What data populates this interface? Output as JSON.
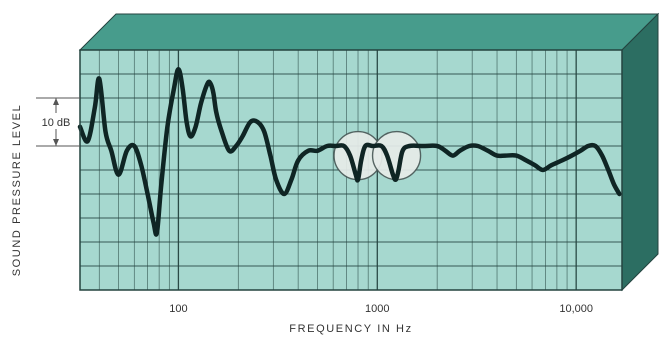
{
  "chart_data": {
    "type": "line",
    "xlabel": "FREQUENCY IN Hz",
    "ylabel": "SOUND PRESSURE LEVEL",
    "x_scale": "log",
    "xlim": [
      32,
      17000
    ],
    "x_ticks": [
      {
        "value": 100,
        "label": "100"
      },
      {
        "value": 1000,
        "label": "1000"
      },
      {
        "value": 10000,
        "label": "10,000"
      }
    ],
    "ylim": [
      -30,
      20
    ],
    "y_unit": "dB",
    "scale_bar": {
      "label": "10 dB",
      "from": 0,
      "to": 10
    },
    "grid": true,
    "highlighted_dips": [
      {
        "x": 800,
        "y": -2
      },
      {
        "x": 1250,
        "y": -2
      }
    ],
    "series": [
      {
        "color": "#0f2524",
        "points": [
          [
            32,
            4
          ],
          [
            35,
            1
          ],
          [
            38,
            8
          ],
          [
            40,
            14
          ],
          [
            43,
            3
          ],
          [
            46,
            -1
          ],
          [
            50,
            -6
          ],
          [
            55,
            -1
          ],
          [
            60,
            0
          ],
          [
            65,
            -4
          ],
          [
            70,
            -10
          ],
          [
            75,
            -16
          ],
          [
            78,
            -18
          ],
          [
            82,
            -8
          ],
          [
            88,
            4
          ],
          [
            95,
            12
          ],
          [
            100,
            16
          ],
          [
            105,
            12
          ],
          [
            110,
            5
          ],
          [
            115,
            2
          ],
          [
            122,
            4
          ],
          [
            130,
            9
          ],
          [
            140,
            13
          ],
          [
            145,
            13
          ],
          [
            150,
            11
          ],
          [
            155,
            7
          ],
          [
            165,
            3
          ],
          [
            180,
            -1
          ],
          [
            195,
            0
          ],
          [
            210,
            2
          ],
          [
            230,
            5
          ],
          [
            250,
            5
          ],
          [
            270,
            3
          ],
          [
            290,
            -2
          ],
          [
            310,
            -7
          ],
          [
            340,
            -10
          ],
          [
            370,
            -7
          ],
          [
            400,
            -3
          ],
          [
            450,
            -1
          ],
          [
            500,
            -1
          ],
          [
            560,
            0
          ],
          [
            620,
            0
          ],
          [
            680,
            0
          ],
          [
            730,
            -2
          ],
          [
            780,
            -6
          ],
          [
            800,
            -7
          ],
          [
            830,
            -3
          ],
          [
            870,
            0
          ],
          [
            950,
            0
          ],
          [
            1050,
            0
          ],
          [
            1120,
            -2
          ],
          [
            1200,
            -6
          ],
          [
            1240,
            -7
          ],
          [
            1280,
            -5
          ],
          [
            1340,
            -1
          ],
          [
            1450,
            0
          ],
          [
            1700,
            0
          ],
          [
            2000,
            0
          ],
          [
            2200,
            -1
          ],
          [
            2400,
            -2
          ],
          [
            2600,
            -1
          ],
          [
            2900,
            0
          ],
          [
            3200,
            0
          ],
          [
            3600,
            -1
          ],
          [
            4000,
            -2
          ],
          [
            4400,
            -2
          ],
          [
            5000,
            -2
          ],
          [
            5600,
            -3
          ],
          [
            6200,
            -4
          ],
          [
            6800,
            -5
          ],
          [
            7500,
            -4
          ],
          [
            8500,
            -3
          ],
          [
            9500,
            -2
          ],
          [
            10500,
            -1
          ],
          [
            11500,
            0
          ],
          [
            12500,
            0
          ],
          [
            13500,
            -2
          ],
          [
            14500,
            -5
          ],
          [
            15500,
            -8
          ],
          [
            16500,
            -10
          ]
        ]
      }
    ]
  },
  "colors": {
    "grid_face": "#a6d8cf",
    "grid_top": "#479c8c",
    "grid_side": "#2c6e62",
    "grid_line": "#24433f",
    "curve": "#0f2524",
    "dip_circle_fill": "#e6ece9"
  }
}
